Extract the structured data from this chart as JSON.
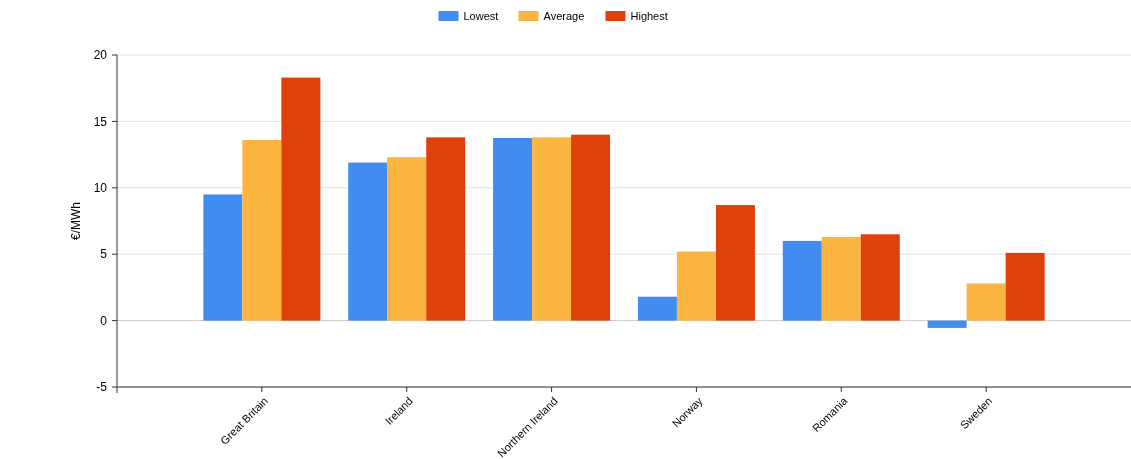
{
  "chart_data": {
    "type": "bar",
    "ylabel": "€/MWh",
    "categories": [
      "Great Britain",
      "Ireland",
      "Northern Ireland",
      "Norway",
      "Romania",
      "Sweden"
    ],
    "series": [
      {
        "name": "Lowest",
        "color": "#418cf0",
        "values": [
          9.5,
          11.9,
          13.75,
          1.8,
          6.0,
          -0.55
        ]
      },
      {
        "name": "Average",
        "color": "#fcb441",
        "values": [
          13.6,
          12.3,
          13.8,
          5.2,
          6.3,
          2.8
        ]
      },
      {
        "name": "Highest",
        "color": "#e0400a",
        "values": [
          18.3,
          13.8,
          14.0,
          8.7,
          6.5,
          5.1
        ]
      }
    ],
    "ylim": [
      -5,
      20
    ],
    "yticks": [
      -5,
      0,
      5,
      10,
      15,
      20
    ],
    "grid": "y",
    "legend": "top"
  }
}
